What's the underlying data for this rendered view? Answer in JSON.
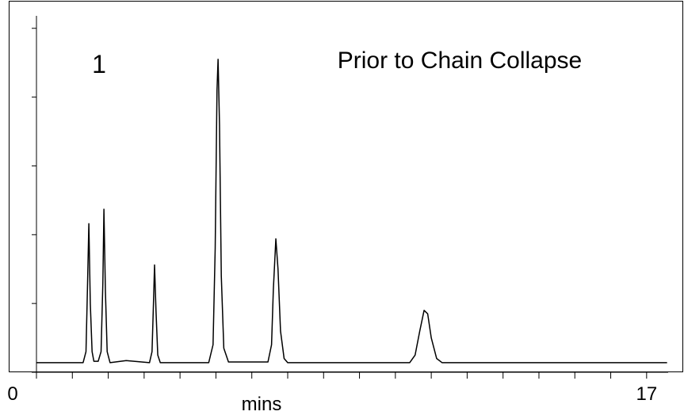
{
  "chart_data": {
    "type": "line",
    "annotations": [
      "1",
      "Prior to Chain Collapse"
    ],
    "xlabel": "mins",
    "x": [
      0,
      1.2,
      1.3,
      1.38,
      1.42,
      1.46,
      1.5,
      1.55,
      1.6,
      1.72,
      1.8,
      1.85,
      1.88,
      1.92,
      1.97,
      2.05,
      2.5,
      3.15,
      3.22,
      3.26,
      3.29,
      3.33,
      3.38,
      3.45,
      4.8,
      4.92,
      4.98,
      5.03,
      5.06,
      5.1,
      5.15,
      5.22,
      5.35,
      6.45,
      6.55,
      6.6,
      6.67,
      6.73,
      6.8,
      6.9,
      7.0,
      10.4,
      10.55,
      10.68,
      10.8,
      10.9,
      11.0,
      11.15,
      11.3,
      17.57
    ],
    "values": [
      0.14,
      0.14,
      0.14,
      0.3,
      1.2,
      2.16,
      1.0,
      0.3,
      0.16,
      0.16,
      0.3,
      1.3,
      2.37,
      1.2,
      0.3,
      0.14,
      0.17,
      0.14,
      0.3,
      1.0,
      1.56,
      0.9,
      0.25,
      0.14,
      0.14,
      0.4,
      1.8,
      4.1,
      4.55,
      3.6,
      1.4,
      0.35,
      0.15,
      0.15,
      0.4,
      1.2,
      1.94,
      1.5,
      0.6,
      0.2,
      0.14,
      0.14,
      0.25,
      0.6,
      0.9,
      0.85,
      0.5,
      0.2,
      0.14,
      0.14
    ],
    "color": "#000000",
    "xlim": [
      0,
      17.6
    ],
    "xticks": [
      0,
      17
    ],
    "minor_xticks": [
      1,
      2,
      3,
      4,
      5,
      6,
      7,
      8,
      9,
      10,
      11,
      12,
      13,
      14,
      15,
      16
    ],
    "ylim": [
      0,
      5.4
    ],
    "minor_yticks": [
      0,
      1,
      2,
      3,
      4,
      5
    ]
  }
}
